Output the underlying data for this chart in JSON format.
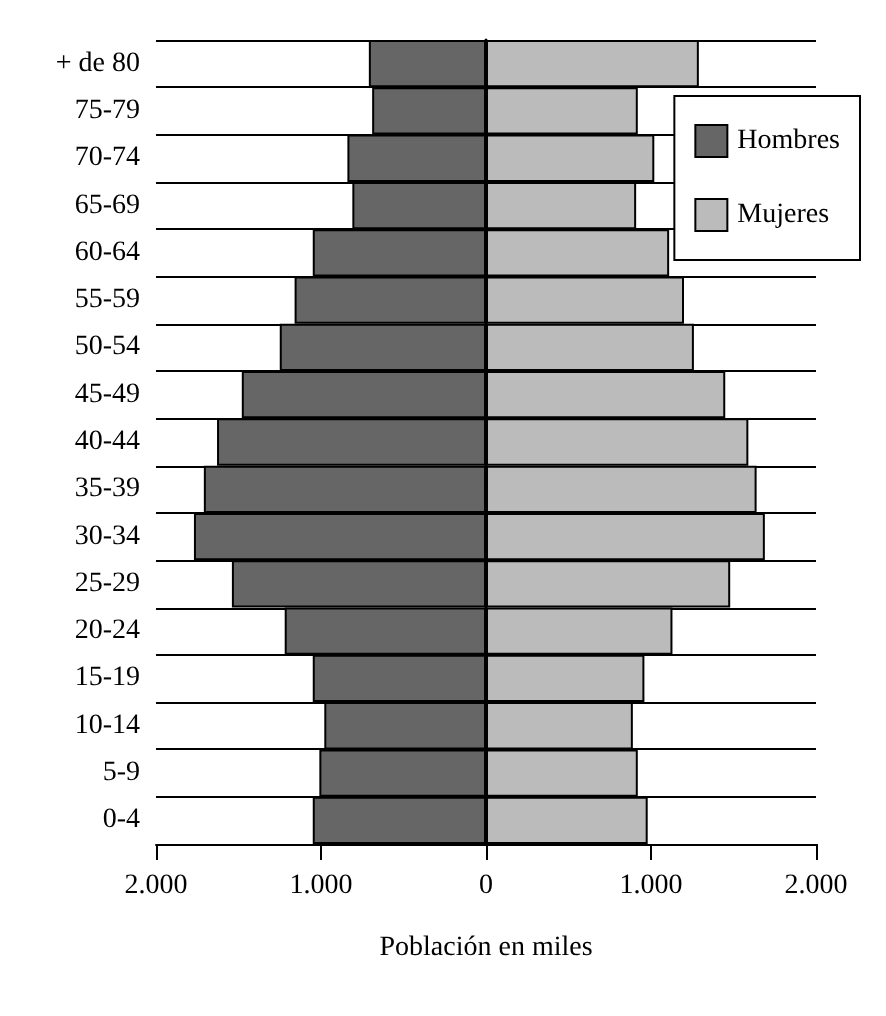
{
  "chart_data": {
    "type": "bar",
    "orientation": "horizontal",
    "xlabel": "Población en miles",
    "categories": [
      "+ de 80",
      "75-79",
      "70-74",
      "65-69",
      "60-64",
      "55-59",
      "50-54",
      "45-49",
      "40-44",
      "35-39",
      "30-34",
      "25-29",
      "20-24",
      "15-19",
      "10-14",
      "5-9",
      "0-4"
    ],
    "series": [
      {
        "name": "Hombres",
        "color": "#666666",
        "values": [
          -710,
          -690,
          -840,
          -810,
          -1050,
          -1160,
          -1250,
          -1480,
          -1630,
          -1710,
          -1770,
          -1540,
          -1220,
          -1050,
          -980,
          -1010,
          -1050
        ]
      },
      {
        "name": "Mujeres",
        "color": "#bbbbbb",
        "values": [
          1290,
          920,
          1020,
          910,
          1110,
          1200,
          1260,
          1450,
          1590,
          1640,
          1690,
          1480,
          1130,
          960,
          890,
          920,
          980
        ]
      }
    ],
    "stacked": true,
    "xlim": [
      -2000,
      2000
    ],
    "xticks": [
      {
        "value": -2000,
        "label": "2.000"
      },
      {
        "value": -1000,
        "label": "1.000"
      },
      0,
      {
        "value": 1000,
        "label": "1.000"
      },
      {
        "value": 2000,
        "label": "2.000"
      }
    ],
    "grid": "y",
    "legend": "top right"
  }
}
